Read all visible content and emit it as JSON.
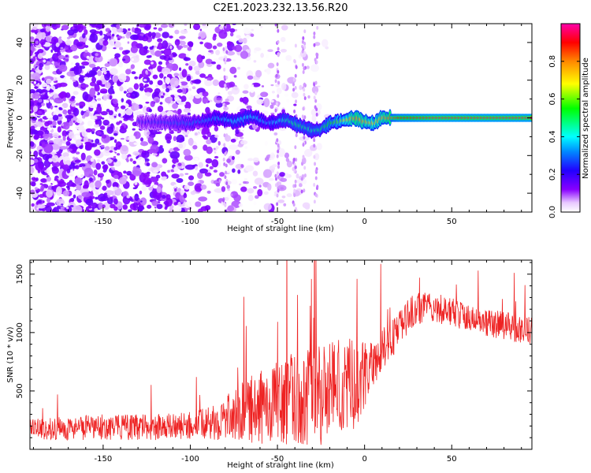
{
  "figure_title": "C2E1.2023.232.13.56.R20",
  "colors": {
    "spectrum_low": "#8800ff",
    "snr_line": "#ee2222",
    "frame": "#000000"
  },
  "chart_data": [
    {
      "type": "heatmap",
      "title": "C2E1.2023.232.13.56.R20",
      "xlabel": "Height of straight line (km)",
      "ylabel": "Frequency (Hz)",
      "xlim": [
        -192,
        96
      ],
      "ylim": [
        -50,
        50
      ],
      "x_ticks": [
        -150,
        -100,
        -50,
        0,
        50
      ],
      "y_ticks": [
        -40,
        -20,
        0,
        20,
        40
      ],
      "grid": false,
      "colorbar": {
        "label": "Normalized spectral amplitude",
        "range": [
          0.0,
          1.0
        ],
        "ticks": [
          0.0,
          0.2,
          0.4,
          0.6,
          0.8
        ],
        "colormap": [
          "#ffffff",
          "#e8c8ff",
          "#8800ff",
          "#2200ff",
          "#0088ff",
          "#00ffff",
          "#00ff00",
          "#ffff00",
          "#ff8800",
          "#ff0000",
          "#ff00aa"
        ]
      },
      "ridge": {
        "x": [
          -130,
          -100,
          -85,
          -75,
          -65,
          -55,
          -45,
          -38,
          -30,
          -25,
          -20,
          -15,
          -10,
          -5,
          0,
          5,
          10,
          20,
          40,
          60,
          80,
          96
        ],
        "frequency": [
          -2,
          -3,
          0,
          -2,
          1,
          -3,
          -1,
          -4,
          -7,
          -6,
          -3,
          -2,
          -1,
          0,
          -2,
          -3,
          0,
          0,
          0,
          0,
          0,
          0
        ],
        "amplitude": [
          0.2,
          0.3,
          0.35,
          0.4,
          0.4,
          0.35,
          0.45,
          0.5,
          0.45,
          0.5,
          0.55,
          0.6,
          0.7,
          0.8,
          0.75,
          0.7,
          0.75,
          0.9,
          0.95,
          0.95,
          0.95,
          0.95
        ]
      }
    },
    {
      "type": "line",
      "xlabel": "Height of straight line (km)",
      "ylabel": "SNR (10 * v/v)",
      "xlim": [
        -192,
        96
      ],
      "ylim": [
        0,
        1620
      ],
      "x_ticks": [
        -150,
        -100,
        -50,
        0,
        50
      ],
      "y_ticks": [
        500,
        1000,
        1500
      ],
      "grid": false,
      "series": [
        {
          "x": [
            -192,
            -170,
            -150,
            -120,
            -100,
            -85,
            -75,
            -65,
            -55,
            -45,
            -35,
            -25,
            -15,
            -5,
            0,
            5,
            10,
            15,
            20,
            25,
            30,
            35,
            40,
            50,
            60,
            70,
            80,
            90,
            96
          ],
          "y": [
            170,
            180,
            190,
            190,
            200,
            230,
            300,
            340,
            380,
            420,
            460,
            480,
            560,
            560,
            620,
            740,
            850,
            930,
            1030,
            1150,
            1200,
            1230,
            1210,
            1180,
            1120,
            1080,
            1060,
            1030,
            1020
          ],
          "noise_amplitude": [
            90,
            100,
            110,
            110,
            120,
            150,
            220,
            300,
            330,
            380,
            420,
            450,
            420,
            380,
            300,
            200,
            180,
            160,
            150,
            150,
            140,
            130,
            130,
            120,
            120,
            120,
            120,
            120,
            120
          ]
        }
      ]
    }
  ]
}
